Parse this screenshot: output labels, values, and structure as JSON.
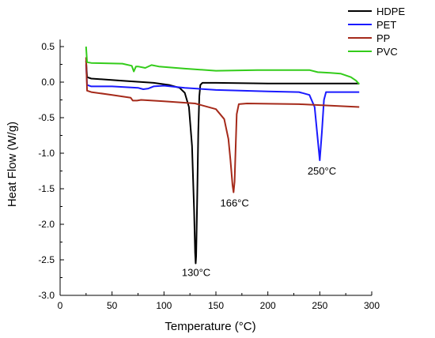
{
  "chart_data": {
    "type": "line",
    "xlabel": "Temperature (°C)",
    "ylabel": "Heat Flow (W/g)",
    "xlim": [
      0,
      300
    ],
    "ylim": [
      -3.0,
      0.6
    ],
    "xticks": [
      0,
      50,
      100,
      150,
      200,
      250,
      300
    ],
    "xtick_labels": [
      "0",
      "50",
      "100",
      "150",
      "200",
      "250",
      "300"
    ],
    "yticks": [
      0.5,
      0.0,
      -0.5,
      -1.0,
      -1.5,
      -2.0,
      -2.5,
      -3.0
    ],
    "ytick_labels": [
      "0.5",
      "0.0",
      "-0.5",
      "-1.0",
      "-1.5",
      "-2.0",
      "-2.5",
      "-3.0"
    ],
    "grid": false,
    "legend_position": "top-right",
    "series": [
      {
        "name": "HDPE",
        "color": "#000000",
        "points": [
          [
            25,
            0.3
          ],
          [
            26,
            0.07
          ],
          [
            30,
            0.05
          ],
          [
            60,
            0.02
          ],
          [
            90,
            -0.01
          ],
          [
            105,
            -0.04
          ],
          [
            115,
            -0.08
          ],
          [
            120,
            -0.15
          ],
          [
            124,
            -0.35
          ],
          [
            127,
            -0.9
          ],
          [
            129,
            -1.8
          ],
          [
            130,
            -2.4
          ],
          [
            130.5,
            -2.55
          ],
          [
            131,
            -2.45
          ],
          [
            132,
            -1.6
          ],
          [
            133,
            -0.7
          ],
          [
            134,
            -0.2
          ],
          [
            135,
            -0.04
          ],
          [
            137,
            -0.01
          ],
          [
            150,
            -0.01
          ],
          [
            200,
            -0.02
          ],
          [
            250,
            -0.02
          ],
          [
            288,
            -0.02
          ]
        ]
      },
      {
        "name": "PET",
        "color": "#1a1aff",
        "points": [
          [
            25,
            0.25
          ],
          [
            26,
            -0.04
          ],
          [
            30,
            -0.06
          ],
          [
            50,
            -0.06
          ],
          [
            75,
            -0.08
          ],
          [
            80,
            -0.1
          ],
          [
            85,
            -0.09
          ],
          [
            90,
            -0.06
          ],
          [
            100,
            -0.05
          ],
          [
            120,
            -0.08
          ],
          [
            150,
            -0.11
          ],
          [
            200,
            -0.13
          ],
          [
            230,
            -0.14
          ],
          [
            240,
            -0.18
          ],
          [
            245,
            -0.35
          ],
          [
            248,
            -0.8
          ],
          [
            250,
            -1.1
          ],
          [
            252,
            -0.7
          ],
          [
            254,
            -0.25
          ],
          [
            256,
            -0.14
          ],
          [
            270,
            -0.14
          ],
          [
            288,
            -0.14
          ]
        ]
      },
      {
        "name": "PP",
        "color": "#a52a1a",
        "points": [
          [
            25,
            0.35
          ],
          [
            26,
            -0.12
          ],
          [
            30,
            -0.14
          ],
          [
            50,
            -0.18
          ],
          [
            68,
            -0.22
          ],
          [
            70,
            -0.26
          ],
          [
            74,
            -0.26
          ],
          [
            78,
            -0.25
          ],
          [
            100,
            -0.27
          ],
          [
            130,
            -0.3
          ],
          [
            150,
            -0.38
          ],
          [
            158,
            -0.52
          ],
          [
            162,
            -0.8
          ],
          [
            164,
            -1.1
          ],
          [
            166,
            -1.45
          ],
          [
            167,
            -1.55
          ],
          [
            168,
            -1.4
          ],
          [
            169,
            -0.9
          ],
          [
            170,
            -0.45
          ],
          [
            172,
            -0.31
          ],
          [
            180,
            -0.3
          ],
          [
            230,
            -0.31
          ],
          [
            288,
            -0.35
          ]
        ]
      },
      {
        "name": "PVC",
        "color": "#33cc1a",
        "points": [
          [
            25,
            0.5
          ],
          [
            26,
            0.28
          ],
          [
            30,
            0.27
          ],
          [
            60,
            0.26
          ],
          [
            69,
            0.23
          ],
          [
            71,
            0.15
          ],
          [
            73,
            0.22
          ],
          [
            75,
            0.22
          ],
          [
            82,
            0.2
          ],
          [
            88,
            0.24
          ],
          [
            95,
            0.22
          ],
          [
            120,
            0.19
          ],
          [
            150,
            0.16
          ],
          [
            190,
            0.17
          ],
          [
            240,
            0.17
          ],
          [
            248,
            0.14
          ],
          [
            260,
            0.13
          ],
          [
            270,
            0.12
          ],
          [
            280,
            0.07
          ],
          [
            285,
            0.02
          ],
          [
            288,
            -0.03
          ]
        ]
      }
    ],
    "annotations": [
      {
        "text": "130°C",
        "x": 131,
        "y": -2.73
      },
      {
        "text": "166°C",
        "x": 168,
        "y": -1.75
      },
      {
        "text": "250°C",
        "x": 252,
        "y": -1.3
      }
    ]
  }
}
